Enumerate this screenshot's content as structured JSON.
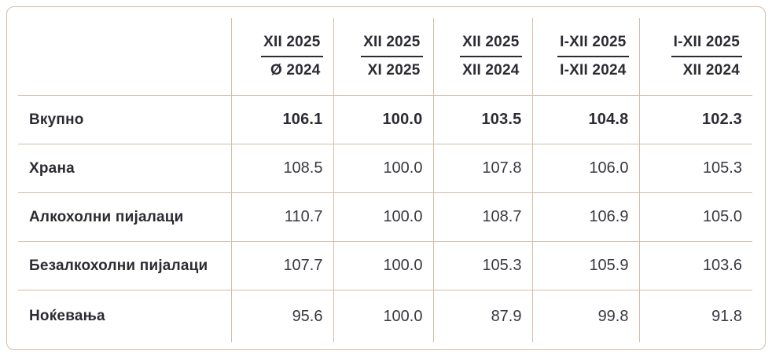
{
  "colors": {
    "border": "#d6bda8",
    "text_dark": "#2b2b33",
    "text_value": "#383841",
    "background": "#ffffff"
  },
  "table": {
    "corner_label": "",
    "columns": [
      {
        "numerator": "XII 2025",
        "denominator": "Ø 2024"
      },
      {
        "numerator": "XII 2025",
        "denominator": "XI 2025"
      },
      {
        "numerator": "XII 2025",
        "denominator": "XII 2024"
      },
      {
        "numerator": "I-XII 2025",
        "denominator": "I-XII 2024"
      },
      {
        "numerator": "I-XII 2025",
        "denominator": "XII 2024"
      }
    ],
    "rows": [
      {
        "label": "Вкупно",
        "bold": true,
        "values": [
          "106.1",
          "100.0",
          "103.5",
          "104.8",
          "102.3"
        ]
      },
      {
        "label": "Храна",
        "bold": false,
        "values": [
          "108.5",
          "100.0",
          "107.8",
          "106.0",
          "105.3"
        ]
      },
      {
        "label": "Алкохолни пијалаци",
        "bold": false,
        "values": [
          "110.7",
          "100.0",
          "108.7",
          "106.9",
          "105.0"
        ]
      },
      {
        "label": "Безалкохолни пијалаци",
        "bold": false,
        "values": [
          "107.7",
          "100.0",
          "105.3",
          "105.9",
          "103.6"
        ]
      },
      {
        "label": "Ноќевања",
        "bold": false,
        "values": [
          "95.6",
          "100.0",
          "87.9",
          "99.8",
          "91.8"
        ]
      }
    ]
  }
}
